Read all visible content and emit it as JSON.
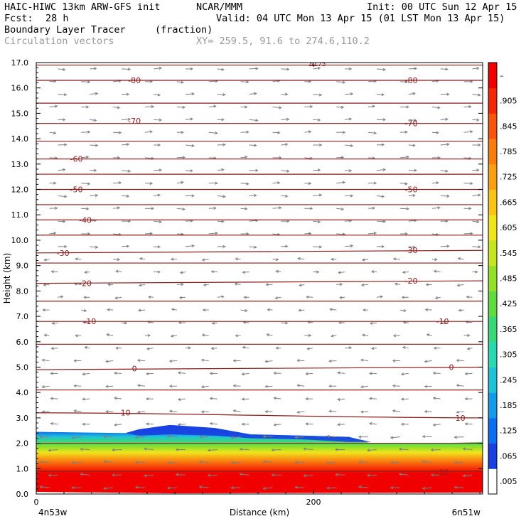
{
  "header": {
    "model": "HAIC-HIWC 13km ARW-GFS init",
    "org": "NCAR/MMM",
    "init": "Init: 00 UTC Sun 12 Apr 15",
    "fcst_label": "Fcst:",
    "fcst_value": "28 h",
    "valid": "Valid: 04 UTC Mon 13 Apr 15 (01 LST Mon 13 Apr 15)",
    "field": "Boundary Layer Tracer",
    "field_units": "(fraction)",
    "vectors": "Circulation vectors",
    "xy": "XY= 259.5, 91.6 to 274.6,110.2"
  },
  "colors": {
    "contour": "#8b1a1a",
    "vector": "#7f7f7f",
    "axis": "#000000",
    "gray_text": "#9a9a9a"
  },
  "chart_data": {
    "type": "heatmap",
    "xlabel": "Distance (km)",
    "ylabel": "Height (km)",
    "xlim": [
      0,
      322
    ],
    "ylim": [
      0,
      17
    ],
    "x_ticks": [
      {
        "value": 0,
        "label": "0"
      },
      {
        "value": 200,
        "label": "200"
      }
    ],
    "x_end_labels": {
      "left": "4n53w",
      "right": "6n51w"
    },
    "y_ticks": [
      "0.0",
      "1.0",
      "2.0",
      "3.0",
      "4.0",
      "5.0",
      "6.0",
      "7.0",
      "8.0",
      "9.0",
      "10.0",
      "11.0",
      "12.0",
      "13.0",
      "14.0",
      "15.0",
      "16.0",
      "17.0"
    ],
    "colorbar": {
      "labels": [
        ".005",
        ".065",
        ".125",
        ".185",
        ".245",
        ".305",
        ".365",
        ".425",
        ".485",
        ".545",
        ".605",
        ".665",
        ".725",
        ".785",
        ".845",
        ".905",
        "–"
      ],
      "colors": [
        "#ffffff",
        "#1a3fe0",
        "#0a6ff0",
        "#149be8",
        "#20c2d8",
        "#2cd8b0",
        "#38d878",
        "#60dc40",
        "#94e028",
        "#c6e420",
        "#f0e41c",
        "#f8c418",
        "#f8a014",
        "#f87c10",
        "#f8540c",
        "#f42808",
        "#f00000"
      ]
    },
    "temperature_contours": [
      {
        "label": "10",
        "y_left": 3.2,
        "y_right": 3.0,
        "label_pos": [
          {
            "x": 0.2,
            "y": 3.2
          },
          {
            "x": 0.95,
            "y": 3.0
          }
        ]
      },
      {
        "label": "0",
        "y_left": 4.9,
        "y_right": 5.0,
        "label_pos": [
          {
            "x": 0.22,
            "y": 4.95
          },
          {
            "x": 0.93,
            "y": 5.0
          }
        ]
      },
      {
        "label": "-10",
        "y_left": 6.8,
        "y_right": 6.8,
        "label_pos": [
          {
            "x": 0.12,
            "y": 6.8
          },
          {
            "x": 0.91,
            "y": 6.8
          }
        ]
      },
      {
        "label": "-20",
        "y_left": 8.3,
        "y_right": 8.4,
        "label_pos": [
          {
            "x": 0.11,
            "y": 8.3
          },
          {
            "x": 0.84,
            "y": 8.4
          }
        ]
      },
      {
        "label": "-30",
        "y_left": 9.5,
        "y_right": 9.6,
        "label_pos": [
          {
            "x": 0.06,
            "y": 9.5
          },
          {
            "x": 0.84,
            "y": 9.6
          }
        ]
      },
      {
        "label": "-40",
        "y_left": 10.8,
        "y_right": 10.8,
        "label_pos": [
          {
            "x": 0.11,
            "y": 10.8
          }
        ]
      },
      {
        "label": "-50",
        "y_left": 12.0,
        "y_right": 12.0,
        "label_pos": [
          {
            "x": 0.09,
            "y": 12.0
          },
          {
            "x": 0.84,
            "y": 12.0
          }
        ]
      },
      {
        "label": "-60",
        "y_left": 13.2,
        "y_right": 13.2,
        "label_pos": [
          {
            "x": 0.09,
            "y": 13.2
          }
        ]
      },
      {
        "label": "-70",
        "y_left": 14.6,
        "y_right": 14.6,
        "label_pos": [
          {
            "x": 0.22,
            "y": 14.7
          },
          {
            "x": 0.84,
            "y": 14.6
          }
        ]
      },
      {
        "label": "-80",
        "y_left": 16.3,
        "y_right": 16.3,
        "label_pos": [
          {
            "x": 0.22,
            "y": 16.3
          },
          {
            "x": 0.84,
            "y": 16.3
          }
        ]
      },
      {
        "label": "-20",
        "y_left": 0.9,
        "y_right": 0.9,
        "label_pos": [
          {
            "x": 0.91,
            "y": 0.85
          }
        ]
      }
    ],
    "unlabeled_contour_heights": [
      2.0,
      4.1,
      5.9,
      7.6,
      9.1,
      10.2,
      11.4,
      12.6,
      13.9,
      15.4,
      16.9
    ],
    "top_label": "ΔZ75",
    "boundary_layer_top_km": [
      {
        "x": 0.0,
        "y": 2.45
      },
      {
        "x": 0.2,
        "y": 2.4
      },
      {
        "x": 0.23,
        "y": 2.55
      },
      {
        "x": 0.3,
        "y": 2.72
      },
      {
        "x": 0.4,
        "y": 2.6
      },
      {
        "x": 0.48,
        "y": 2.35
      },
      {
        "x": 0.6,
        "y": 2.3
      },
      {
        "x": 0.7,
        "y": 2.25
      },
      {
        "x": 0.75,
        "y": 2.0
      },
      {
        "x": 0.9,
        "y": 2.0
      },
      {
        "x": 1.0,
        "y": 2.05
      }
    ]
  }
}
